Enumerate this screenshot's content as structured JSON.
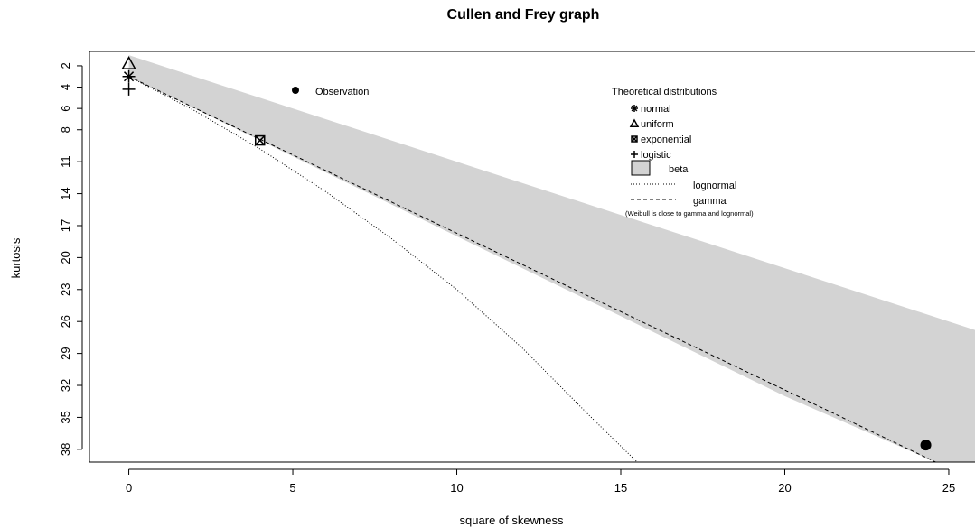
{
  "chart_data": {
    "type": "scatter",
    "title": "Cullen and Frey graph",
    "xlabel": "square of skewness",
    "ylabel": "kurtosis",
    "xlim": [
      -1.2,
      25.8
    ],
    "ylim": [
      39.2,
      0.65
    ],
    "y_axis_inverted": true,
    "grid": false,
    "x_ticks": [
      0,
      5,
      10,
      15,
      20,
      25
    ],
    "y_ticks": [
      2,
      4,
      6,
      8,
      11,
      14,
      17,
      20,
      23,
      26,
      29,
      32,
      35,
      38
    ],
    "observation": {
      "label": "Observation",
      "points": [
        {
          "x": 24.3,
          "y": 37.6
        }
      ]
    },
    "theoretical": {
      "normal": {
        "x": 0,
        "y": 3
      },
      "uniform": {
        "x": 0,
        "y": 1.8
      },
      "exponential": {
        "x": 4,
        "y": 9
      },
      "logistic": {
        "x": 0,
        "y": 4.2
      }
    },
    "beta_region": {
      "upper": [
        {
          "x": 0,
          "y": 1
        },
        {
          "x": 25.8,
          "y": 26.8
        }
      ],
      "lower": [
        {
          "x": 0,
          "y": 3
        },
        {
          "x": 4,
          "y": 9
        },
        {
          "x": 10,
          "y": 18
        },
        {
          "x": 15,
          "y": 25.5
        },
        {
          "x": 20,
          "y": 33
        },
        {
          "x": 24.6,
          "y": 39.2
        }
      ]
    },
    "lognormal_line": [
      {
        "x": 0,
        "y": 3
      },
      {
        "x": 2,
        "y": 6.2
      },
      {
        "x": 4,
        "y": 9.8
      },
      {
        "x": 6,
        "y": 13.8
      },
      {
        "x": 8,
        "y": 18.2
      },
      {
        "x": 10,
        "y": 23
      },
      {
        "x": 12,
        "y": 28.5
      },
      {
        "x": 14,
        "y": 34.7
      },
      {
        "x": 15.5,
        "y": 39.2
      }
    ],
    "gamma_line": [
      {
        "x": 0,
        "y": 3
      },
      {
        "x": 24.6,
        "y": 39.2
      }
    ],
    "legend": {
      "title": "Theoretical distributions",
      "placement": "top-right",
      "entries": [
        {
          "key": "normal",
          "label": "normal",
          "symbol": "asterisk"
        },
        {
          "key": "uniform",
          "label": "uniform",
          "symbol": "triangle"
        },
        {
          "key": "exponential",
          "label": "exponential",
          "symbol": "crossed-square"
        },
        {
          "key": "logistic",
          "label": "logistic",
          "symbol": "plus"
        },
        {
          "key": "beta",
          "label": "beta",
          "symbol": "filled-box"
        },
        {
          "key": "lognormal",
          "label": "lognormal",
          "symbol": "dotted-line"
        },
        {
          "key": "gamma",
          "label": "gamma",
          "symbol": "dashed-line"
        }
      ],
      "note": "(Weibull is close to gamma and lognormal)"
    },
    "colors": {
      "beta_fill": "#d3d3d3",
      "ink": "#000000"
    }
  }
}
